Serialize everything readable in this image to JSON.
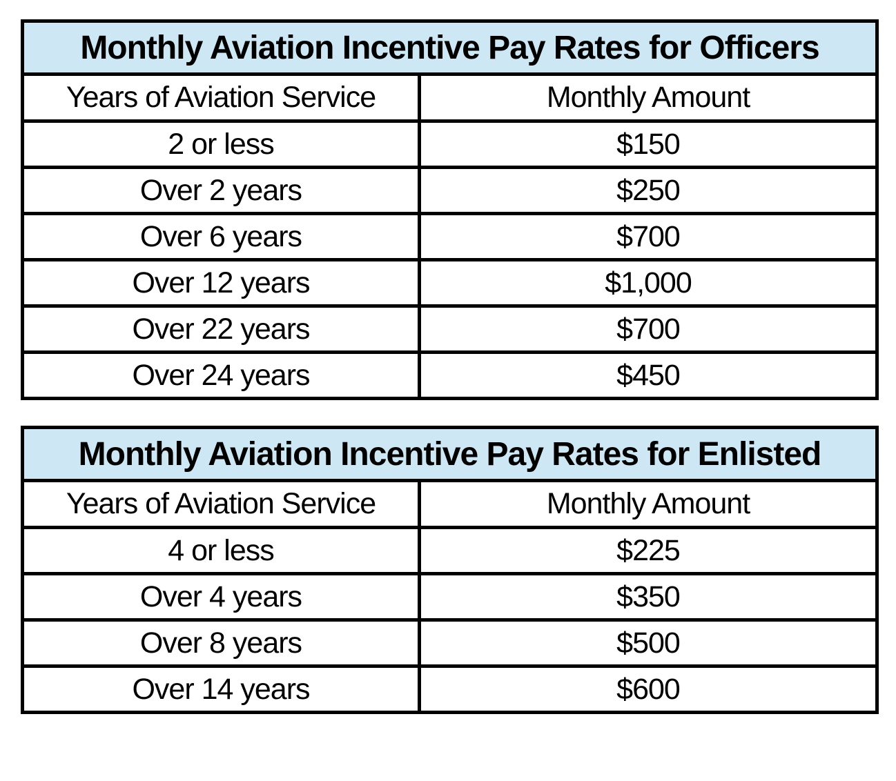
{
  "colors": {
    "title_background": "#cee7f5",
    "border": "#000000",
    "text": "#000000",
    "page_background": "#ffffff"
  },
  "tables": [
    {
      "title": "Monthly Aviation Incentive Pay Rates for Officers",
      "columns": [
        "Years of Aviation Service",
        "Monthly Amount"
      ],
      "rows": [
        [
          "2 or less",
          "$150"
        ],
        [
          "Over 2 years",
          "$250"
        ],
        [
          "Over 6 years",
          "$700"
        ],
        [
          "Over 12 years",
          "$1,000"
        ],
        [
          "Over 22 years",
          "$700"
        ],
        [
          "Over 24 years",
          "$450"
        ]
      ]
    },
    {
      "title": "Monthly Aviation Incentive Pay Rates for Enlisted",
      "columns": [
        "Years of Aviation Service",
        "Monthly Amount"
      ],
      "rows": [
        [
          "4 or less",
          "$225"
        ],
        [
          "Over 4 years",
          "$350"
        ],
        [
          "Over 8 years",
          "$500"
        ],
        [
          "Over 14 years",
          "$600"
        ]
      ]
    }
  ],
  "chart_data": [
    {
      "type": "table",
      "title": "Monthly Aviation Incentive Pay Rates for Officers",
      "categories": [
        "2 or less",
        "Over 2 years",
        "Over 6 years",
        "Over 12 years",
        "Over 22 years",
        "Over 24 years"
      ],
      "values": [
        150,
        250,
        700,
        1000,
        700,
        450
      ],
      "xlabel": "Years of Aviation Service",
      "ylabel": "Monthly Amount"
    },
    {
      "type": "table",
      "title": "Monthly Aviation Incentive Pay Rates for Enlisted",
      "categories": [
        "4 or less",
        "Over 4 years",
        "Over 8 years",
        "Over 14 years"
      ],
      "values": [
        225,
        350,
        500,
        600
      ],
      "xlabel": "Years of Aviation Service",
      "ylabel": "Monthly Amount"
    }
  ]
}
